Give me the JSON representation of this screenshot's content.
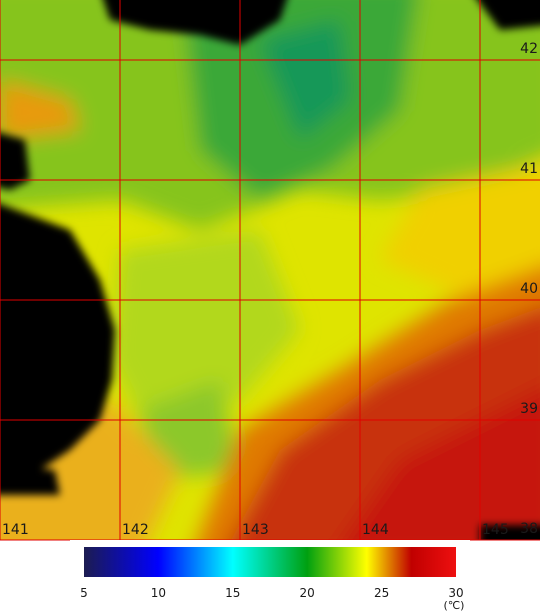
{
  "map": {
    "longitudes": [
      141,
      142,
      143,
      144,
      145
    ],
    "latitudes": [
      42,
      41,
      40,
      39,
      38
    ]
  },
  "colorbar": {
    "ticks": [
      5,
      10,
      15,
      20,
      25,
      30
    ],
    "unit": "(℃)"
  }
}
